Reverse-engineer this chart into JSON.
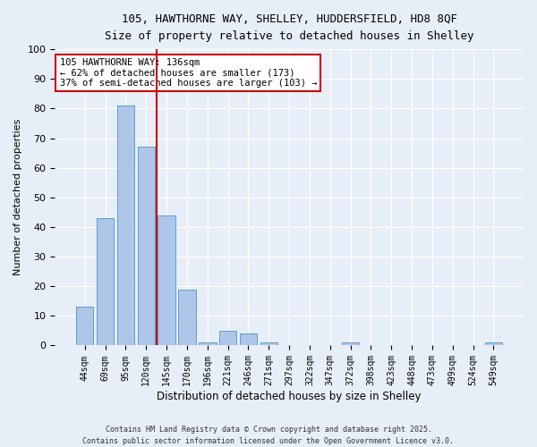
{
  "title_line1": "105, HAWTHORNE WAY, SHELLEY, HUDDERSFIELD, HD8 8QF",
  "title_line2": "Size of property relative to detached houses in Shelley",
  "xlabel": "Distribution of detached houses by size in Shelley",
  "ylabel": "Number of detached properties",
  "categories": [
    "44sqm",
    "69sqm",
    "95sqm",
    "120sqm",
    "145sqm",
    "170sqm",
    "196sqm",
    "221sqm",
    "246sqm",
    "271sqm",
    "297sqm",
    "322sqm",
    "347sqm",
    "372sqm",
    "398sqm",
    "423sqm",
    "448sqm",
    "473sqm",
    "499sqm",
    "524sqm",
    "549sqm"
  ],
  "values": [
    13,
    43,
    81,
    67,
    44,
    19,
    1,
    5,
    4,
    1,
    0,
    0,
    0,
    1,
    0,
    0,
    0,
    0,
    0,
    0,
    1
  ],
  "bar_color": "#aec6e8",
  "bar_edge_color": "#5a9fd4",
  "vline_color": "#cc0000",
  "annotation_text": "105 HAWTHORNE WAY: 136sqm\n← 62% of detached houses are smaller (173)\n37% of semi-detached houses are larger (103) →",
  "annotation_box_color": "#ffffff",
  "annotation_box_edge": "#cc0000",
  "ylim": [
    0,
    100
  ],
  "yticks": [
    0,
    10,
    20,
    30,
    40,
    50,
    60,
    70,
    80,
    90,
    100
  ],
  "background_color": "#e8eef8",
  "footer_line1": "Contains HM Land Registry data © Crown copyright and database right 2025.",
  "footer_line2": "Contains public sector information licensed under the Open Government Licence v3.0."
}
